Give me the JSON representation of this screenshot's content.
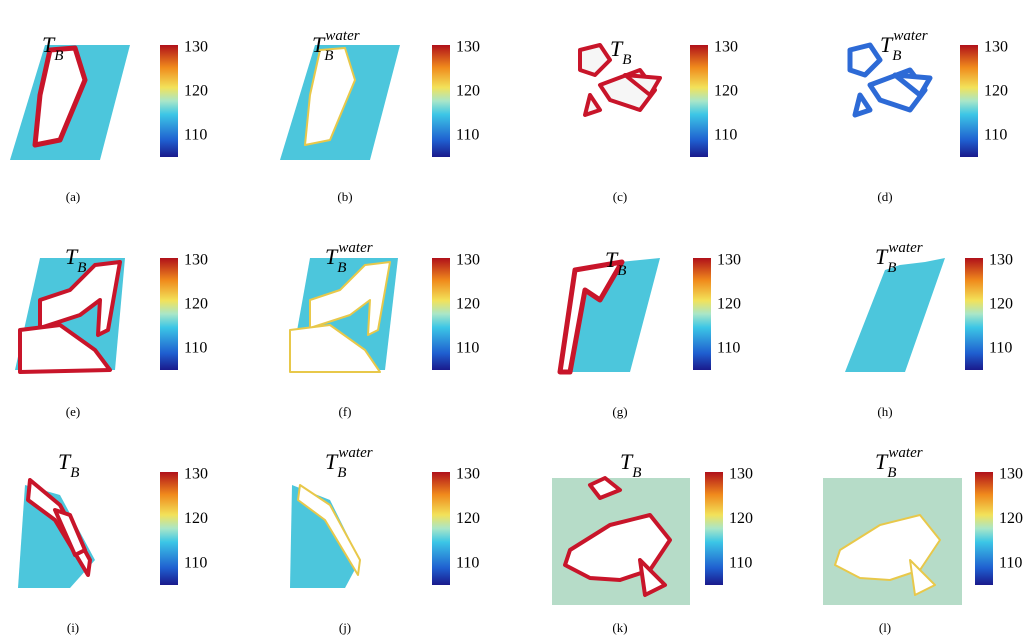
{
  "panels": [
    {
      "title": {
        "main": "T",
        "sub": "B"
      },
      "colorbar_ticks": [
        130,
        120,
        110
      ],
      "caption": "(a)"
    },
    {
      "title": {
        "main": "T",
        "sub": "B",
        "sup": "water"
      },
      "colorbar_ticks": [
        130,
        120,
        110
      ],
      "caption": "(b)"
    },
    {
      "title": {
        "main": "T",
        "sub": "B"
      },
      "colorbar_ticks": [
        130,
        120,
        110
      ],
      "caption": "(c)"
    },
    {
      "title": {
        "main": "T",
        "sub": "B",
        "sup": "water"
      },
      "colorbar_ticks": [
        130,
        120,
        110
      ],
      "caption": "(d)"
    },
    {
      "title": {
        "main": "T",
        "sub": "B"
      },
      "colorbar_ticks": [
        130,
        120,
        110
      ],
      "caption": "(e)"
    },
    {
      "title": {
        "main": "T",
        "sub": "B",
        "sup": "water"
      },
      "colorbar_ticks": [
        130,
        120,
        110
      ],
      "caption": "(f)"
    },
    {
      "title": {
        "main": "T",
        "sub": "B"
      },
      "colorbar_ticks": [
        130,
        120,
        110
      ],
      "caption": "(g)"
    },
    {
      "title": {
        "main": "T",
        "sub": "B",
        "sup": "water"
      },
      "colorbar_ticks": [
        130,
        120,
        110
      ],
      "caption": "(h)"
    },
    {
      "title": {
        "main": "T",
        "sub": "B"
      },
      "colorbar_ticks": [
        130,
        120,
        110
      ],
      "caption": "(i)"
    },
    {
      "title": {
        "main": "T",
        "sub": "B",
        "sup": "water"
      },
      "colorbar_ticks": [
        130,
        120,
        110
      ],
      "caption": "(j)"
    },
    {
      "title": {
        "main": "T",
        "sub": "B"
      },
      "colorbar_ticks": [
        130,
        120,
        110
      ],
      "caption": "(k)"
    },
    {
      "title": {
        "main": "T",
        "sub": "B",
        "sup": "water"
      },
      "colorbar_ticks": [
        130,
        120,
        110
      ],
      "caption": "(l)"
    }
  ]
}
